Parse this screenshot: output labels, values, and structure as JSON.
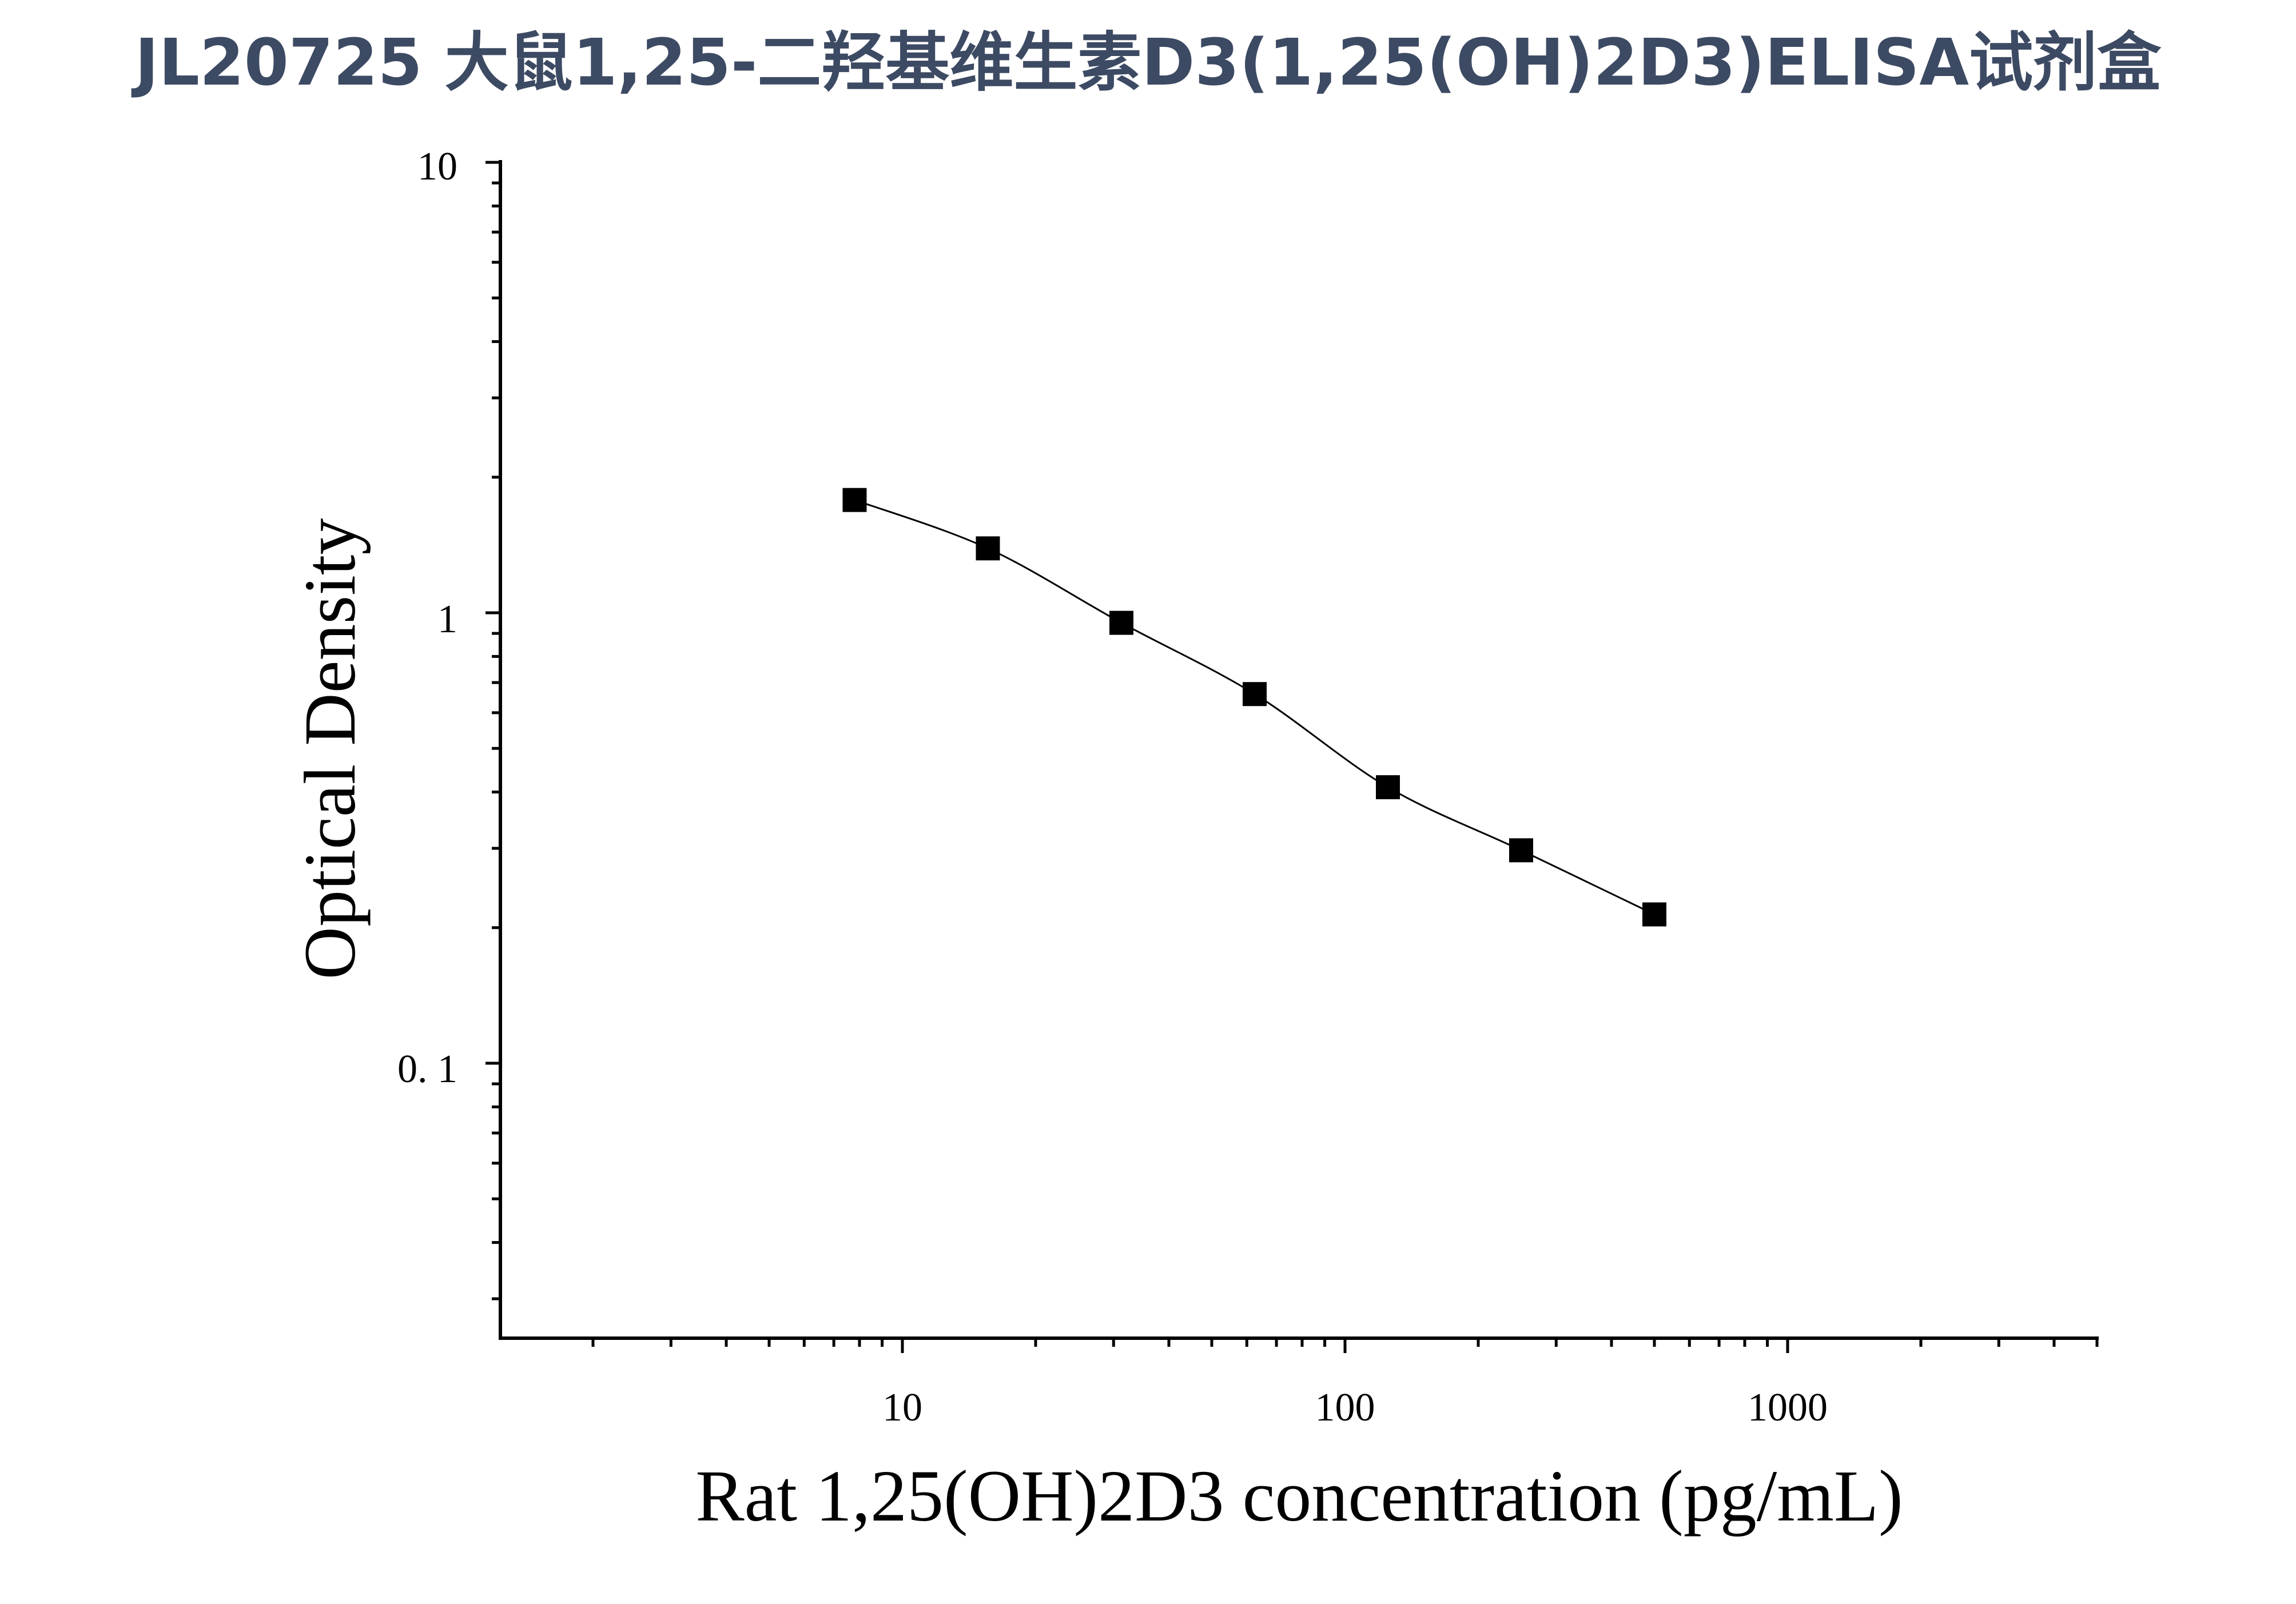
{
  "title": "JL20725 大鼠1,25-二羟基维生素D3(1,25(OH)2D3)ELISA试剂盒",
  "colors": {
    "title": "#3d4a63",
    "axis": "#000000",
    "marker": "#000000",
    "curve": "#000000",
    "background": "#ffffff"
  },
  "chart_data": {
    "type": "scatter",
    "xlabel": "Rat 1,25(OH)2D3 concentration (pg/mL)",
    "ylabel": "Optical Density",
    "xscale": "log",
    "yscale": "log",
    "xlim": [
      1.2,
      5000
    ],
    "ylim": [
      0.025,
      10
    ],
    "x_tick_labels": [
      "10",
      "100",
      "1000"
    ],
    "y_tick_labels": [
      "10",
      "1",
      "0. 1"
    ],
    "grid": false,
    "legend": "none",
    "marker": "square",
    "fit_curve": true,
    "series": [
      {
        "x": [
          7.8,
          15.6,
          31.25,
          62.5,
          125,
          250,
          500
        ],
        "y": [
          1.78,
          1.39,
          0.95,
          0.66,
          0.41,
          0.297,
          0.214
        ]
      }
    ]
  }
}
